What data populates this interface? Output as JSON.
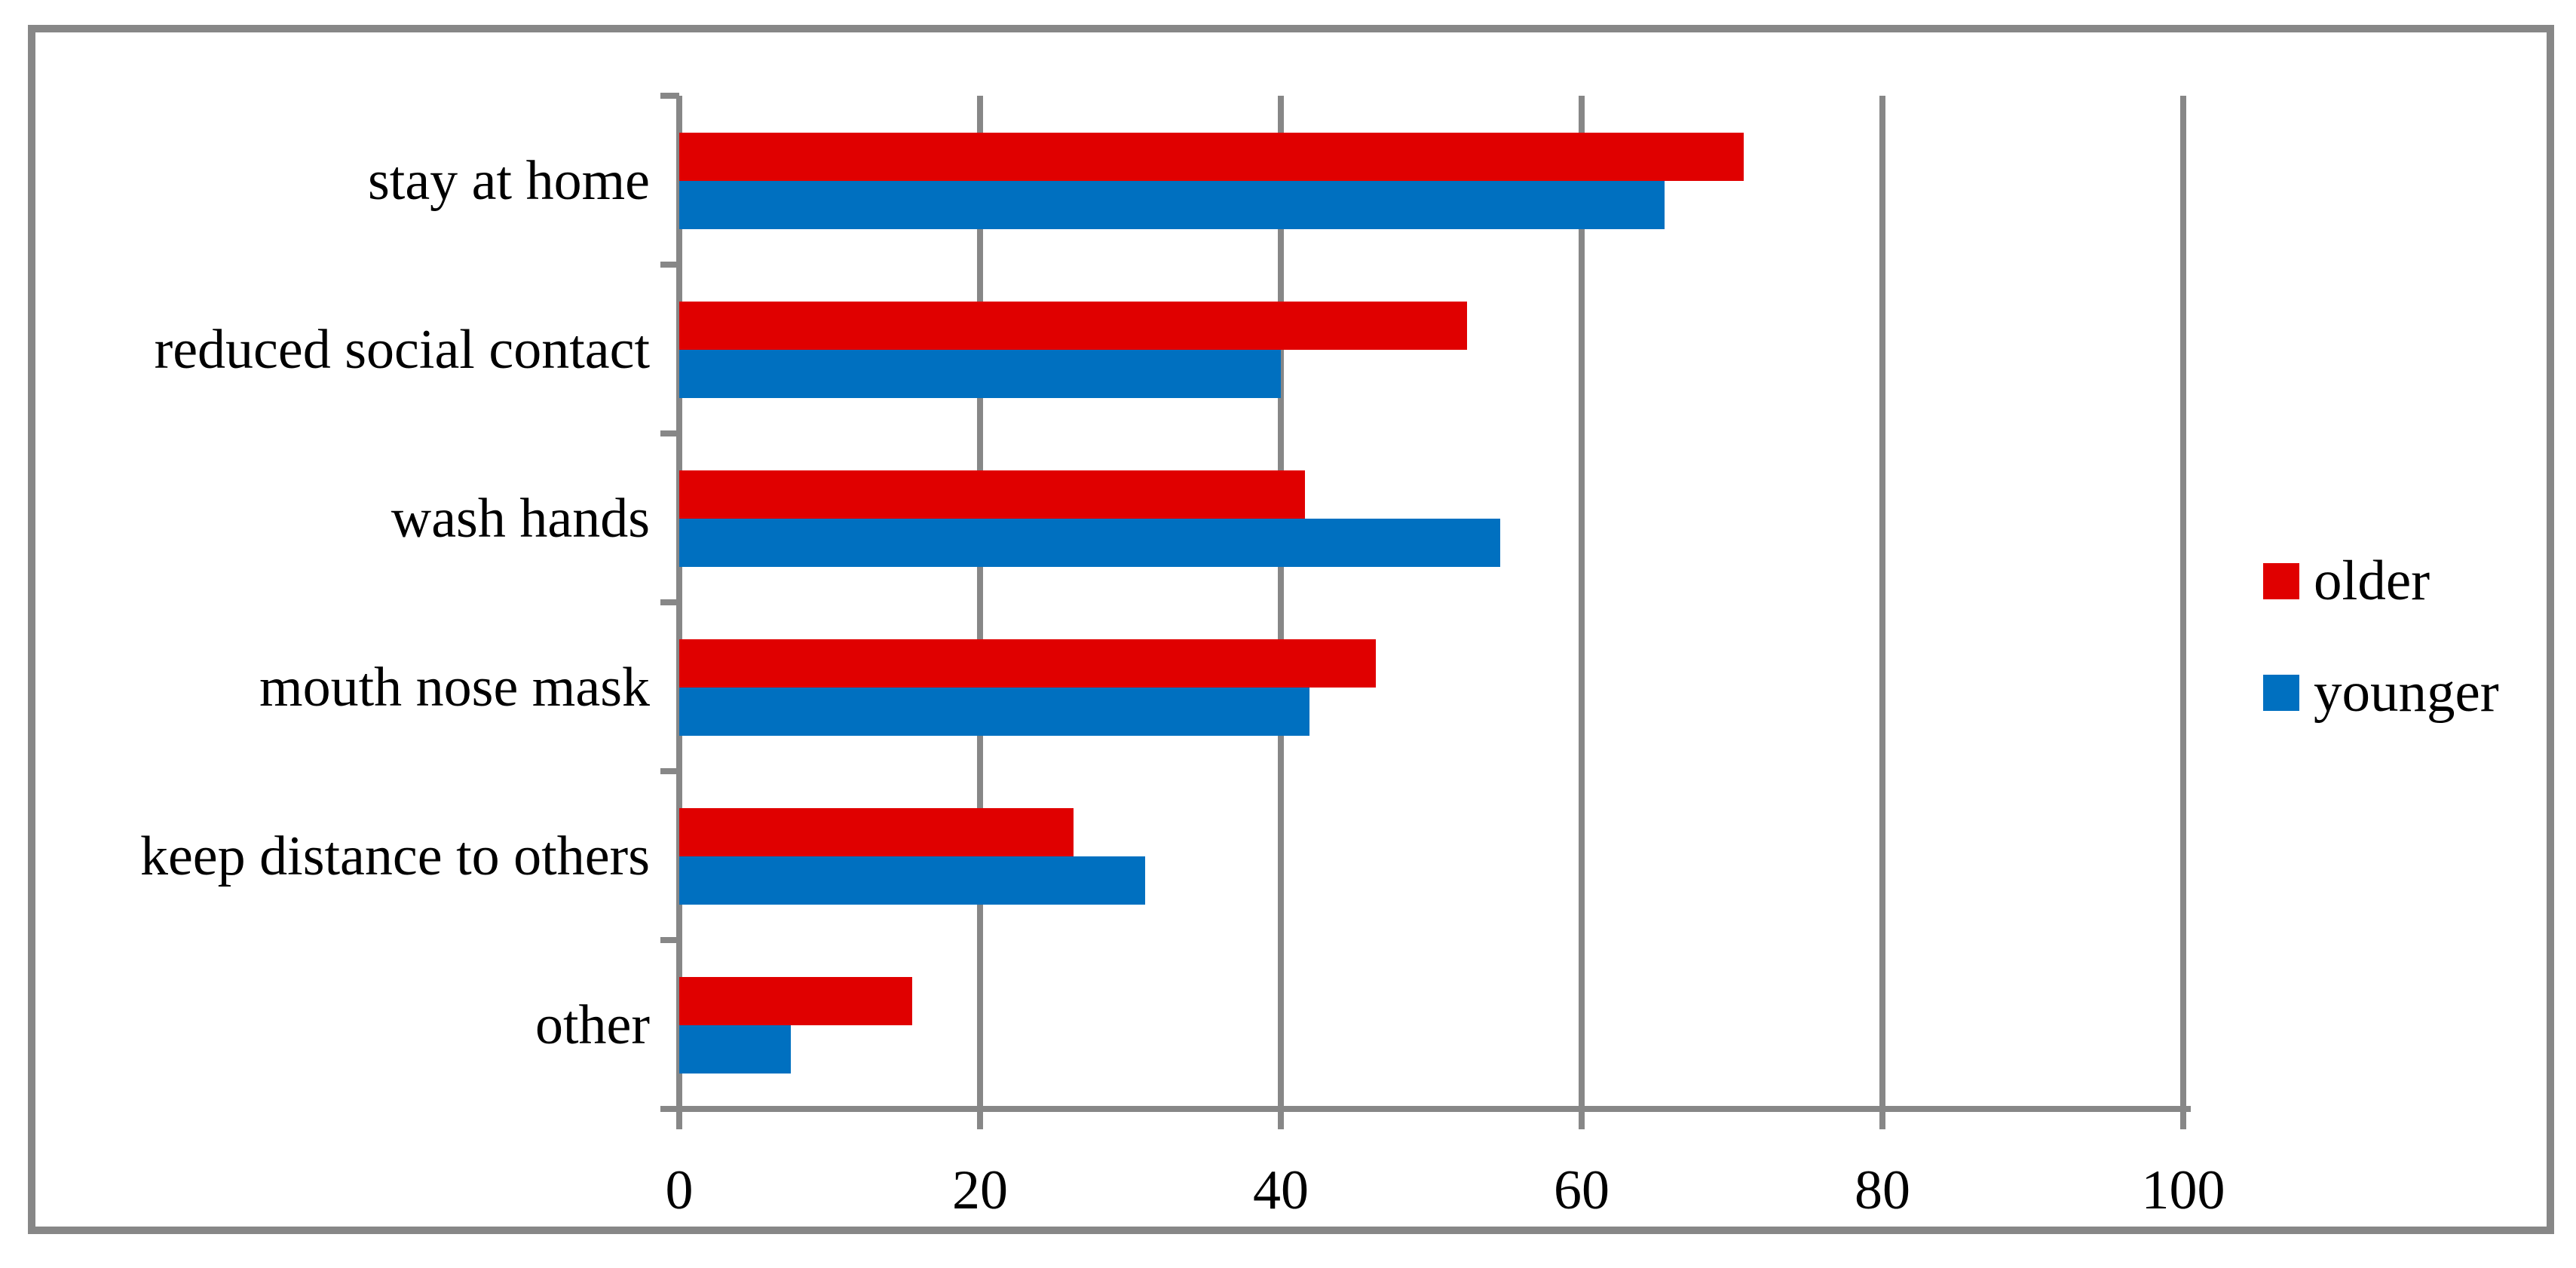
{
  "chart_data": {
    "type": "bar",
    "orientation": "horizontal",
    "title": "",
    "xlabel": "",
    "ylabel": "",
    "categories": [
      "stay at home",
      "reduced social contact",
      "wash hands",
      "mouth nose mask",
      "keep distance to others",
      "other"
    ],
    "series": [
      {
        "name": "older",
        "color": "#e00000",
        "values": [
          70.8,
          52.4,
          41.6,
          46.3,
          26.2,
          15.5
        ]
      },
      {
        "name": "younger",
        "color": "#0070c0",
        "values": [
          65.5,
          40.0,
          54.6,
          41.9,
          31.0,
          7.4
        ]
      }
    ],
    "xlim": [
      0,
      100
    ],
    "x_ticks": [
      "0",
      "20",
      "40",
      "60",
      "80",
      "100"
    ],
    "grid": true,
    "legend_position": "right",
    "axis_color": "#878787",
    "frame_color": "#878787",
    "background_color": "#ffffff",
    "text_color": "#000000"
  }
}
